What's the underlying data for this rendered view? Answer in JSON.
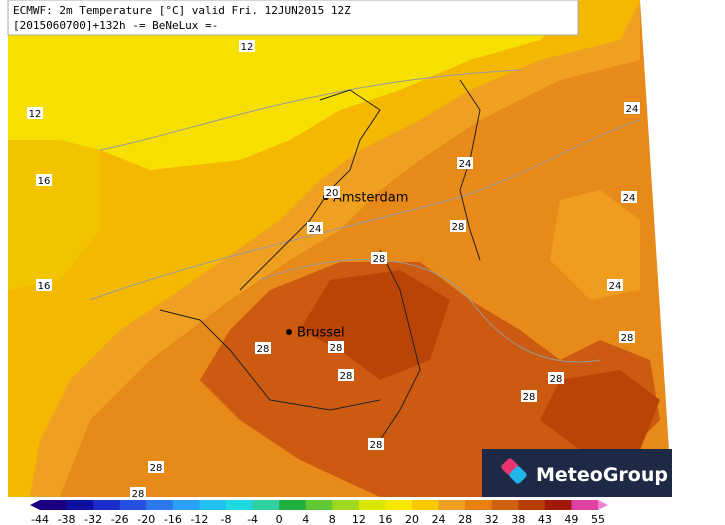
{
  "header": {
    "line1": "ECMWF: 2m Temperature [°C] valid Fri. 12JUN2015 12Z",
    "line2": "[2015060700]+132h -= BeNeLux =-"
  },
  "cities": [
    "Amsterdam",
    "Brussel"
  ],
  "contour_labels": [
    "12",
    "12",
    "16",
    "16",
    "20",
    "24",
    "24",
    "24",
    "24",
    "24",
    "28",
    "28",
    "28",
    "28",
    "28",
    "28",
    "28",
    "28",
    "28",
    "28",
    "28"
  ],
  "logo": "MeteoGroup",
  "colorbar": {
    "ticks": [
      -44,
      -38,
      -32,
      -26,
      -20,
      -16,
      -12,
      -8,
      -4,
      0,
      4,
      8,
      12,
      16,
      20,
      24,
      28,
      32,
      38,
      43,
      49,
      55
    ]
  }
}
